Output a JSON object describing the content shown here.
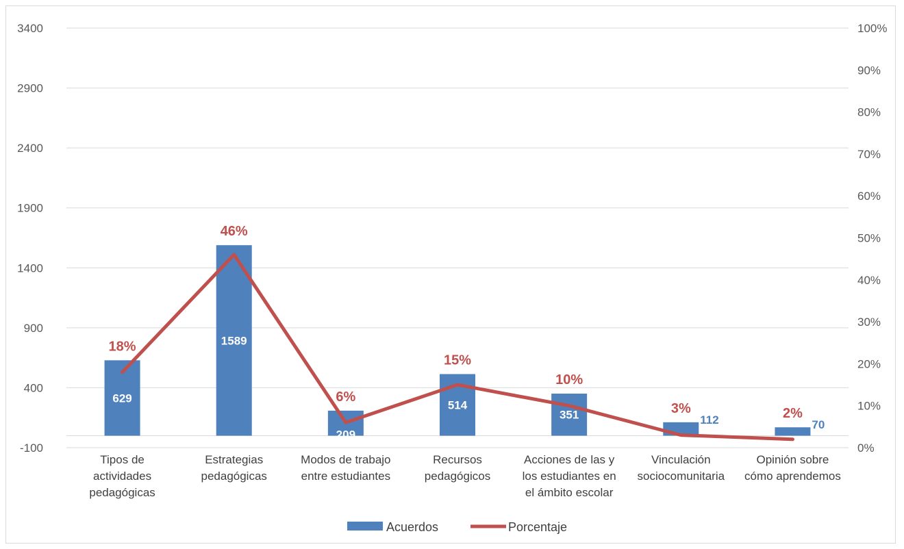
{
  "chart_data": {
    "type": "bar",
    "categories": [
      [
        "Tipos de",
        "actividades",
        "pedagógicas"
      ],
      [
        "Estrategias",
        "pedagógicas"
      ],
      [
        "Modos de trabajo",
        "entre estudiantes"
      ],
      [
        "Recursos",
        "pedagógicos"
      ],
      [
        "Acciones de las y",
        "los estudiantes en",
        "el ámbito escolar"
      ],
      [
        "Vinculación",
        "sociocomunitaria"
      ],
      [
        "Opinión sobre",
        "cómo aprendemos"
      ]
    ],
    "series": [
      {
        "name": "Acuerdos",
        "type": "bar",
        "axis": "left",
        "color": "#4f81bd",
        "values": [
          629,
          1589,
          209,
          514,
          351,
          112,
          70
        ],
        "labels": [
          "629",
          "1589",
          "209",
          "514",
          "351",
          "112",
          "70"
        ],
        "label_color": "#ffffff",
        "outside_label_color": "#4f81bd"
      },
      {
        "name": "Porcentaje",
        "type": "line",
        "axis": "right",
        "color": "#c0504d",
        "values": [
          0.18,
          0.46,
          0.06,
          0.15,
          0.1,
          0.03,
          0.02
        ],
        "labels": [
          "18%",
          "46%",
          "6%",
          "15%",
          "10%",
          "3%",
          "2%"
        ]
      }
    ],
    "y_left": {
      "min": -100,
      "max": 3400,
      "ticks": [
        "-100",
        "400",
        "900",
        "1400",
        "1900",
        "2400",
        "2900",
        "3400"
      ],
      "tick_values": [
        -100,
        400,
        900,
        1400,
        1900,
        2400,
        2900,
        3400
      ]
    },
    "y_right": {
      "min": 0,
      "max": 1,
      "ticks": [
        "0%",
        "10%",
        "20%",
        "30%",
        "40%",
        "50%",
        "60%",
        "70%",
        "80%",
        "90%",
        "100%"
      ]
    },
    "grid": true,
    "legend_position": "bottom",
    "legend": [
      "Acuerdos",
      "Porcentaje"
    ]
  }
}
